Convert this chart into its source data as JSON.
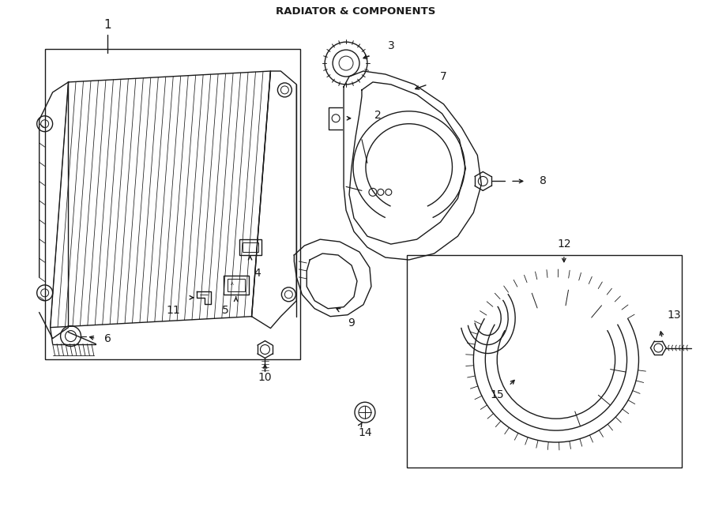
{
  "title": "RADIATOR & COMPONENTS",
  "bg_color": "#ffffff",
  "line_color": "#1a1a1a",
  "fig_width": 9.0,
  "fig_height": 6.61,
  "lw": 1.0
}
